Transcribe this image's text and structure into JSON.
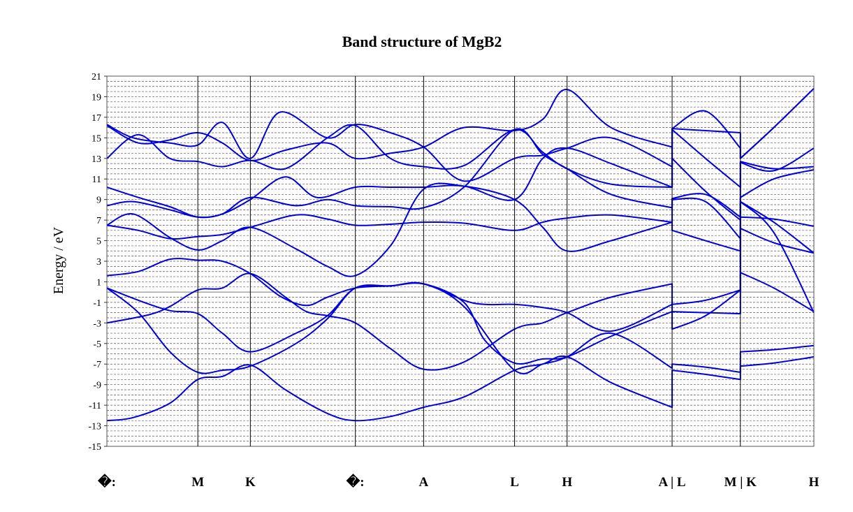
{
  "chart_data": {
    "type": "line",
    "title": "Band structure of MgB2",
    "ylabel": "Energy / eV",
    "xlabel": "",
    "ylim": [
      -15,
      21
    ],
    "yticks": [
      "21",
      "19",
      "17",
      "15",
      "13",
      "11",
      "9",
      "7",
      "5",
      "3",
      "1",
      "-1",
      "-3",
      "-5",
      "-7",
      "-9",
      "-11",
      "-13",
      "-15"
    ],
    "minor_grid": true,
    "fermi_level": 0,
    "kpoints": [
      "�:",
      "M",
      "K",
      "�:",
      "A",
      "L",
      "H",
      "A | L",
      "M | K",
      "H"
    ],
    "kpoint_positions": [
      0,
      1.732,
      2.732,
      4.732,
      6.032,
      7.764,
      8.764,
      10.764,
      12.064,
      13.464
    ],
    "colors": {
      "band": "#0000dd",
      "grid": "#555555",
      "vline": "#000000",
      "fermi": "#888888"
    },
    "bands": [
      {
        "name": "",
        "x": [
          0,
          0.5,
          1.2,
          1.732,
          2.2,
          2.732,
          3.4,
          4.2,
          4.732,
          5.4,
          6.032,
          6.8,
          7.764,
          8.3,
          8.764,
          9.6,
          10.764,
          10.764,
          11.4,
          12.064,
          12.064,
          12.7,
          13.464
        ],
        "y": [
          -12.5,
          -12.2,
          -10.8,
          -8.5,
          -8.2,
          -7.1,
          -9.5,
          -11.8,
          -12.5,
          -12.1,
          -11.2,
          -10.2,
          -7.6,
          -7.0,
          -6.3,
          -8.8,
          -11.2,
          -7.6,
          -8.0,
          -8.5,
          -7.2,
          -6.9,
          -6.3
        ]
      },
      {
        "name": "",
        "x": [
          0,
          0.6,
          1.2,
          1.732,
          2.2,
          2.732,
          3.6,
          4.2,
          4.732,
          5.4,
          6.032,
          6.8,
          7.764,
          8.3,
          8.764,
          9.6,
          10.764,
          10.764,
          11.4,
          12.064,
          12.064,
          12.7,
          13.464
        ],
        "y": [
          0.4,
          -2.0,
          -5.8,
          -7.8,
          -7.6,
          -7.2,
          -5.0,
          -2.6,
          0.4,
          0.6,
          0.8,
          -1.4,
          -7.6,
          -7.0,
          -6.3,
          -4.0,
          -7.4,
          -7.0,
          -7.3,
          -7.8,
          -5.8,
          -5.6,
          -5.2
        ]
      },
      {
        "name": "",
        "x": [
          0,
          0.6,
          1.2,
          1.732,
          2.2,
          2.732,
          3.6,
          4.2,
          4.732,
          5.4,
          6.032,
          6.8,
          7.2,
          7.764,
          8.3,
          8.764,
          9.6,
          10.764,
          10.764,
          11.4,
          12.064,
          12.064,
          12.7,
          13.464
        ],
        "y": [
          0.4,
          -0.8,
          -1.8,
          -2.1,
          -4.0,
          -5.8,
          -4.0,
          -2.3,
          0.4,
          0.6,
          0.8,
          -1.0,
          -4.7,
          -6.9,
          -6.5,
          -6.3,
          -4.3,
          -1.9,
          -1.9,
          -2.0,
          -2.1,
          1.9,
          0.4,
          -1.9
        ]
      },
      {
        "name": "",
        "x": [
          0,
          0.8,
          1.2,
          1.732,
          2.2,
          2.732,
          3.4,
          3.8,
          4.2,
          4.732,
          5.4,
          6.032,
          6.8,
          7.764,
          8.3,
          8.764,
          9.6,
          10.764,
          10.764,
          11.4,
          12.064,
          12.064,
          12.7,
          13.464
        ],
        "y": [
          -3.0,
          -2.2,
          -1.4,
          0.2,
          0.4,
          1.8,
          -0.5,
          -1.9,
          -2.3,
          -3.0,
          -5.5,
          -7.5,
          -6.8,
          -3.6,
          -3.0,
          -2.0,
          -0.5,
          0.8,
          -3.6,
          -2.3,
          0.2,
          8.8,
          6.8,
          3.8
        ]
      },
      {
        "name": "",
        "x": [
          0,
          0.6,
          1.2,
          1.732,
          2.2,
          2.732,
          3.3,
          3.8,
          4.2,
          4.732,
          5.4,
          6.032,
          6.8,
          7.2,
          7.764,
          8.3,
          8.764,
          9.6,
          10.764,
          10.764,
          11.4,
          12.064,
          12.064,
          12.7,
          13.464
        ],
        "y": [
          1.6,
          2.0,
          3.2,
          3.1,
          3.0,
          1.8,
          -0.4,
          -1.3,
          -0.5,
          0.4,
          0.6,
          0.8,
          -0.8,
          -1.2,
          -1.2,
          -1.5,
          -2.0,
          -3.8,
          -1.2,
          -1.2,
          -0.8,
          0.2,
          6.2,
          4.8,
          3.8
        ]
      },
      {
        "name": "",
        "x": [
          0,
          0.6,
          1.2,
          1.732,
          2.2,
          2.732,
          3.6,
          4.2,
          4.732,
          5.4,
          6.032,
          6.8,
          7.764,
          8.3,
          8.764,
          9.6,
          10.764,
          10.764,
          11.4,
          12.064,
          12.064,
          12.7,
          13.464
        ],
        "y": [
          6.5,
          6.0,
          5.2,
          5.4,
          5.6,
          6.3,
          7.5,
          7.1,
          6.5,
          6.6,
          6.8,
          6.7,
          6.0,
          6.8,
          7.2,
          7.5,
          6.8,
          6.0,
          5.0,
          4.0,
          7.3,
          7.1,
          6.4
        ]
      },
      {
        "name": "",
        "x": [
          0,
          0.5,
          1.2,
          1.732,
          2.2,
          2.732,
          3.6,
          4.2,
          4.732,
          5.4,
          6.032,
          6.8,
          7.764,
          8.3,
          8.764,
          9.6,
          10.764,
          10.764,
          11.4,
          12.064,
          12.064,
          12.7,
          13.464
        ],
        "y": [
          6.5,
          7.6,
          5.3,
          4.1,
          5.0,
          6.3,
          4.2,
          2.5,
          1.6,
          4.5,
          10.0,
          10.3,
          9.0,
          6.3,
          4.0,
          5.0,
          6.8,
          9.0,
          8.8,
          5.2,
          8.8,
          5.8,
          -2.0
        ]
      },
      {
        "name": "",
        "x": [
          0,
          0.5,
          1.2,
          1.732,
          2.2,
          2.732,
          3.6,
          4.2,
          4.732,
          5.4,
          6.032,
          6.8,
          7.764,
          8.3,
          8.764,
          9.6,
          10.764,
          10.764,
          11.4,
          12.064,
          12.064,
          12.7,
          13.464
        ],
        "y": [
          8.4,
          8.8,
          8.0,
          7.3,
          7.6,
          9.2,
          8.4,
          9.0,
          8.4,
          8.3,
          8.2,
          10.2,
          15.8,
          13.4,
          12.0,
          9.5,
          8.2,
          9.1,
          9.5,
          7.3,
          9.2,
          11.0,
          11.9
        ]
      },
      {
        "name": "",
        "x": [
          0,
          0.6,
          1.2,
          1.732,
          2.2,
          2.732,
          3.4,
          4.0,
          4.732,
          5.4,
          6.032,
          6.8,
          7.764,
          8.3,
          8.764,
          9.6,
          10.764,
          10.764,
          11.4,
          12.064,
          12.064,
          12.7,
          13.464
        ],
        "y": [
          10.2,
          9.2,
          8.3,
          7.3,
          7.6,
          9.0,
          11.2,
          9.2,
          10.2,
          10.2,
          10.2,
          10.3,
          9.0,
          13.0,
          14.0,
          12.5,
          10.2,
          13.0,
          9.8,
          7.0,
          12.7,
          12.0,
          12.2
        ]
      },
      {
        "name": "",
        "x": [
          0,
          0.6,
          1.2,
          1.732,
          2.2,
          2.732,
          3.4,
          4.2,
          4.732,
          5.4,
          6.032,
          6.8,
          7.764,
          8.3,
          8.764,
          9.6,
          10.764,
          10.764,
          11.4,
          12.064,
          12.064,
          12.7,
          13.464
        ],
        "y": [
          13.0,
          15.3,
          13.0,
          12.7,
          12.2,
          12.8,
          12.0,
          15.0,
          16.2,
          13.0,
          12.2,
          12.3,
          15.8,
          13.6,
          12.0,
          10.5,
          10.2,
          15.8,
          13.0,
          10.2,
          12.6,
          11.8,
          14.0
        ]
      },
      {
        "name": "",
        "x": [
          0,
          0.5,
          1.2,
          1.732,
          2.2,
          2.732,
          3.3,
          4.2,
          4.732,
          5.4,
          6.032,
          6.8,
          7.764,
          8.3,
          8.764,
          9.6,
          10.764,
          10.764,
          11.4,
          12.064,
          12.064,
          12.7,
          13.464
        ],
        "y": [
          16.3,
          15.0,
          14.5,
          14.3,
          16.5,
          13.0,
          17.5,
          15.0,
          16.3,
          15.5,
          14.1,
          10.8,
          13.0,
          13.3,
          14.0,
          15.0,
          12.2,
          15.9,
          15.7,
          15.5,
          13.0,
          16.0,
          19.8
        ]
      },
      {
        "name": "",
        "x": [
          0,
          0.6,
          1.2,
          1.732,
          2.2,
          2.732,
          3.4,
          4.2,
          4.732,
          5.4,
          6.032,
          6.8,
          7.764,
          8.3,
          8.764,
          9.6,
          10.764,
          10.764,
          11.4,
          12.064,
          12.064,
          12.7,
          13.464
        ],
        "y": [
          16.2,
          14.5,
          14.8,
          15.5,
          14.5,
          12.8,
          13.8,
          14.5,
          13.0,
          13.5,
          14.1,
          16.0,
          15.7,
          16.8,
          19.7,
          16.0,
          14.1,
          15.9,
          17.6,
          14.0,
          13.0,
          16.0,
          19.8
        ]
      }
    ]
  }
}
